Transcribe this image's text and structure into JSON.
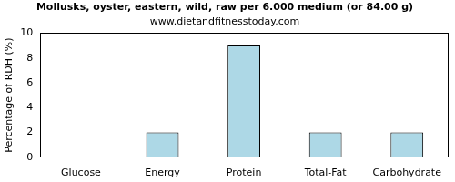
{
  "chart_data": {
    "type": "bar",
    "title": "Mollusks, oyster, eastern, wild, raw per 6.000 medium (or 84.00 g)",
    "subtitle": "www.dietandfitnesstoday.com",
    "y_label": "Percentage of RDH (%)",
    "categories": [
      "Glucose",
      "Energy",
      "Protein",
      "Total-Fat",
      "Carbohydrate"
    ],
    "values": [
      0,
      2,
      9,
      2,
      2
    ],
    "color": "#add8e6",
    "ylim": [
      0,
      10
    ],
    "yticks": [
      0,
      2,
      4,
      6,
      8,
      10
    ],
    "grid": false
  }
}
